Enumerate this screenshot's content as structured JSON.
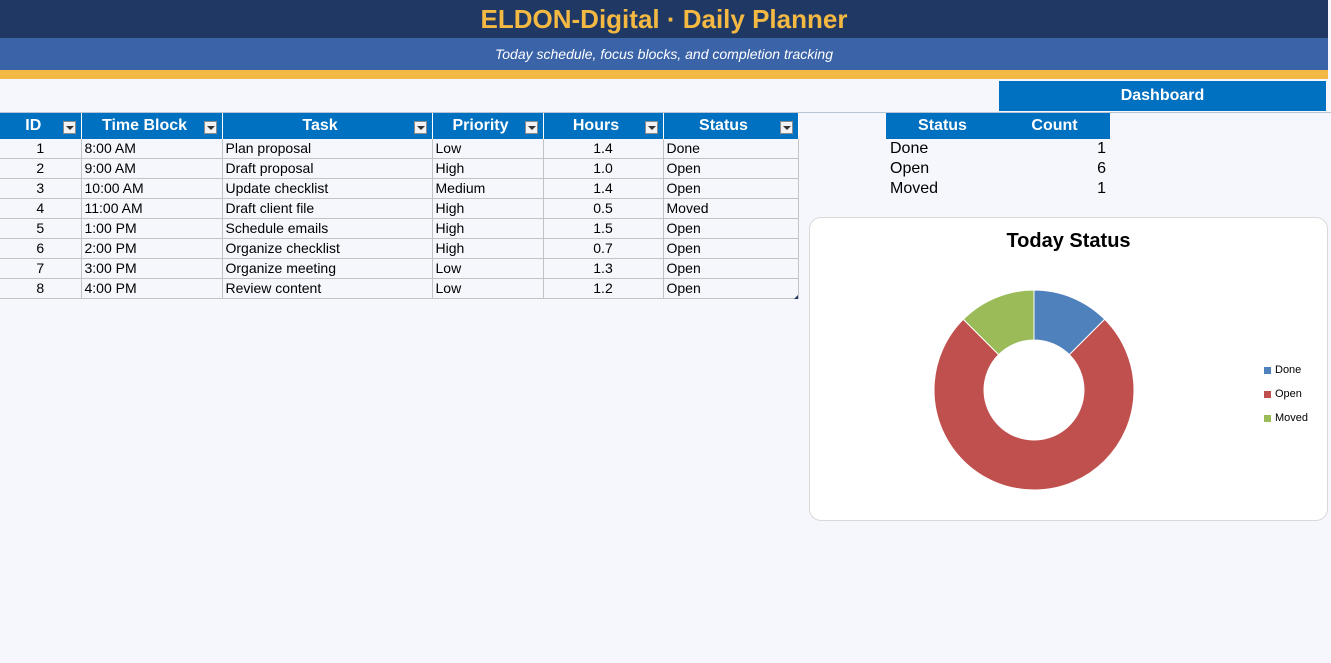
{
  "header": {
    "title": "ELDON-Digital  ·  Daily Planner",
    "subtitle": "Today schedule, focus blocks, and completion tracking"
  },
  "nav": {
    "dashboard_label": "Dashboard"
  },
  "tasks_table": {
    "columns": [
      "ID",
      "Time Block",
      "Task",
      "Priority",
      "Hours",
      "Status"
    ],
    "rows": [
      [
        "1",
        "8:00 AM",
        "Plan proposal",
        "Low",
        "1.4",
        "Done"
      ],
      [
        "2",
        "9:00 AM",
        "Draft proposal",
        "High",
        "1.0",
        "Open"
      ],
      [
        "3",
        "10:00 AM",
        "Update checklist",
        "Medium",
        "1.4",
        "Open"
      ],
      [
        "4",
        "11:00 AM",
        "Draft client file",
        "High",
        "0.5",
        "Moved"
      ],
      [
        "5",
        "1:00 PM",
        "Schedule emails",
        "High",
        "1.5",
        "Open"
      ],
      [
        "6",
        "2:00 PM",
        "Organize checklist",
        "High",
        "0.7",
        "Open"
      ],
      [
        "7",
        "3:00 PM",
        "Organize meeting",
        "Low",
        "1.3",
        "Open"
      ],
      [
        "8",
        "4:00 PM",
        "Review content",
        "Low",
        "1.2",
        "Open"
      ]
    ]
  },
  "summary_table": {
    "columns": [
      "Status",
      "Count"
    ],
    "rows": [
      [
        "Done",
        "1"
      ],
      [
        "Open",
        "6"
      ],
      [
        "Moved",
        "1"
      ]
    ]
  },
  "colors": {
    "title_bg": "#1f3864",
    "title_text": "#f4b942",
    "subtitle_bg": "#3a63a8",
    "accent": "#f4b942",
    "header_blue": "#0070c0"
  },
  "chart_data": {
    "type": "pie",
    "title": "Today Status",
    "categories": [
      "Done",
      "Open",
      "Moved"
    ],
    "values": [
      1,
      6,
      1
    ],
    "colors": [
      "#4f81bd",
      "#c0504d",
      "#9bbb59"
    ],
    "legend": "right",
    "hole": 0.5
  }
}
